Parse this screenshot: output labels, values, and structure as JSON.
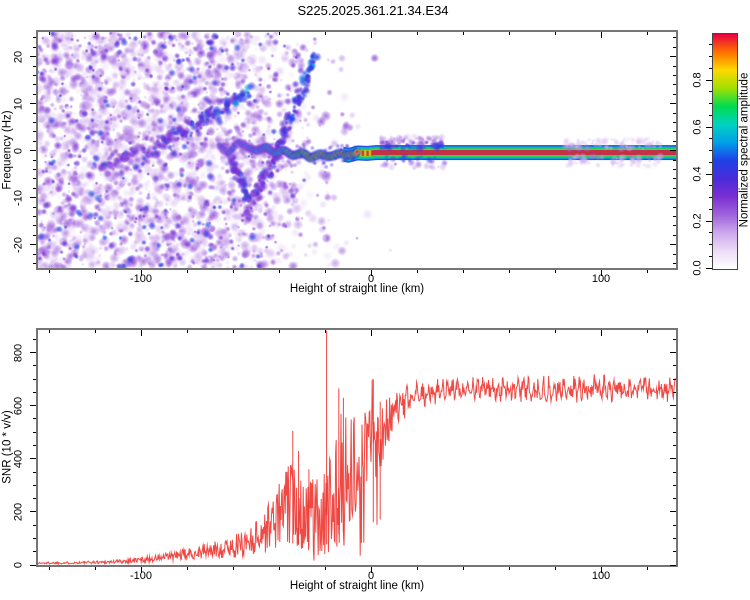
{
  "chart_data": [
    {
      "type": "heatmap",
      "title": "S225.2025.361.21.34.E34",
      "xlabel": "Height of straight line (km)",
      "ylabel": "Frequency (Hz)",
      "xlim": [
        -144.8,
        132.6
      ],
      "ylim": [
        -25.2,
        25.2
      ],
      "xticks": {
        "major": [
          -100,
          0,
          100
        ],
        "minor_step": 20
      },
      "yticks": {
        "major": [
          -20,
          -10,
          0,
          10,
          20
        ],
        "minor_step": 2
      },
      "grid": false,
      "colorbar": {
        "label": "Normalized spectral amplitude",
        "range": [
          0,
          1
        ],
        "ticks": [
          0.0,
          0.2,
          0.4,
          0.6,
          0.8
        ],
        "minor_step": 0.05,
        "colors_low_to_high": [
          "#ffffff",
          "#ecdcf8",
          "#cda8ec",
          "#9f63dc",
          "#7a2fd2",
          "#4b2bda",
          "#2040e8",
          "#00a0e8",
          "#00d2c0",
          "#00dc50",
          "#a0e000",
          "#ffd800",
          "#ff7000",
          "#e80040"
        ]
      },
      "noise_field": {
        "freq_range": [
          -25,
          25
        ],
        "km_density": [
          [
            -145,
            0.95
          ],
          [
            -95,
            0.95
          ],
          [
            -60,
            0.8
          ],
          [
            -40,
            0.45
          ],
          [
            -25,
            0.16
          ],
          [
            -8,
            0.02
          ],
          [
            17,
            0.008
          ]
        ]
      },
      "tracks": {
        "chains": [
          {
            "name": "rising-chain",
            "points": [
              [
                -118,
                -4
              ],
              [
                -103,
                -1
              ],
              [
                -90,
                2
              ],
              [
                -77,
                5
              ],
              [
                -66,
                8.5
              ],
              [
                -57,
                11.5
              ],
              [
                -52,
                13
              ]
            ],
            "amp": [
              0.26,
              0.5
            ],
            "jitter": [
              2.4,
              1.6
            ],
            "core_p": 0.14
          },
          {
            "name": "descending-chain",
            "points": [
              [
                -64,
                1
              ],
              [
                -58,
                -5
              ],
              [
                -53,
                -11
              ]
            ],
            "amp": [
              0.3,
              0.45
            ],
            "jitter": [
              1.4,
              1.2
            ],
            "core_p": 0.08
          },
          {
            "name": "steep-diagonal",
            "points": [
              [
                -55,
                -14
              ],
              [
                -45,
                -5
              ],
              [
                -37,
                5
              ],
              [
                -29,
                14
              ],
              [
                -24,
                21
              ]
            ],
            "amp": [
              0.3,
              0.5
            ],
            "jitter": [
              1.3,
              1.2
            ],
            "core_p": 0.1
          }
        ],
        "carrier": {
          "points": [
            [
              -66,
              1.2,
              0.45
            ],
            [
              -62,
              -0.5,
              0.5
            ],
            [
              -58,
              1.8,
              0.52
            ],
            [
              -54,
              0.8,
              0.56
            ],
            [
              -50,
              -0.2,
              0.6
            ],
            [
              -46,
              1.0,
              0.64
            ],
            [
              -42,
              -0.6,
              0.68
            ],
            [
              -38,
              0.2,
              0.74
            ],
            [
              -34,
              -1.2,
              0.82
            ],
            [
              -30,
              -0.4,
              0.88
            ],
            [
              -26,
              -1.6,
              0.93
            ],
            [
              -22,
              -0.6,
              1.0
            ],
            [
              -18,
              -1.4,
              0.9
            ],
            [
              -14,
              -0.6,
              1.0
            ],
            [
              -10,
              -1.0,
              0.95
            ],
            [
              -6,
              -0.5,
              1.0
            ],
            [
              -2,
              -0.6,
              1.0
            ],
            [
              2,
              -0.42,
              1.0
            ]
          ],
          "flat_hz": -0.42,
          "stripe_start_km": -12,
          "bands": [
            [
              7.5,
              0.47
            ],
            [
              6.0,
              0.6
            ],
            [
              4.5,
              0.71
            ],
            [
              3.3,
              0.8
            ],
            [
              2.7,
              1.0
            ]
          ]
        },
        "fuzz": [
          {
            "km": [
              4,
              32
            ],
            "hz": [
              0.8,
              3.4
            ],
            "count": 130,
            "amp": [
              0.14,
              0.5
            ],
            "above_frac": 0.78
          },
          {
            "km": [
              84,
              126
            ],
            "hz": [
              0.7,
              2.9
            ],
            "count": 150,
            "amp": [
              0.08,
              0.2
            ],
            "above_frac": 0.5
          }
        ]
      }
    },
    {
      "type": "line",
      "xlabel": "Height of straight line (km)",
      "ylabel": "SNR (10 * v/v)",
      "xlim": [
        -144.8,
        132.6
      ],
      "ylim": [
        0,
        887
      ],
      "xticks": {
        "major": [
          -100,
          0,
          100
        ],
        "minor_step": 20
      },
      "yticks": {
        "major": [
          0,
          200,
          400,
          600,
          800
        ],
        "minor_step": 50
      },
      "grid": false,
      "color": "#ee3a34",
      "envelope": [
        [
          -145,
          7,
          4
        ],
        [
          -125,
          9,
          5
        ],
        [
          -112,
          12,
          7
        ],
        [
          -102,
          18,
          10
        ],
        [
          -92,
          26,
          14
        ],
        [
          -82,
          38,
          20
        ],
        [
          -72,
          52,
          28
        ],
        [
          -62,
          62,
          38
        ],
        [
          -56,
          80,
          50
        ],
        [
          -50,
          105,
          65
        ],
        [
          -46,
          130,
          85
        ],
        [
          -42,
          170,
          110
        ],
        [
          -38,
          210,
          140
        ],
        [
          -35,
          235,
          155
        ],
        [
          -32,
          225,
          160
        ],
        [
          -29,
          200,
          150
        ],
        [
          -26,
          185,
          150
        ],
        [
          -23,
          170,
          150
        ],
        [
          -20,
          210,
          190
        ],
        [
          -17,
          260,
          230
        ],
        [
          -14,
          330,
          260
        ],
        [
          -11,
          380,
          240
        ],
        [
          -8,
          370,
          200
        ],
        [
          -5,
          400,
          180
        ],
        [
          -2,
          430,
          170
        ],
        [
          1,
          460,
          150
        ],
        [
          4,
          490,
          130
        ],
        [
          7,
          530,
          105
        ],
        [
          10,
          565,
          80
        ],
        [
          13,
          595,
          60
        ],
        [
          16,
          618,
          45
        ],
        [
          20,
          640,
          38
        ],
        [
          26,
          652,
          36
        ],
        [
          40,
          660,
          34
        ],
        [
          60,
          663,
          35
        ],
        [
          80,
          660,
          36
        ],
        [
          100,
          666,
          38
        ],
        [
          120,
          662,
          36
        ],
        [
          133,
          660,
          36
        ]
      ],
      "spikes": [
        [
          -34,
          505
        ],
        [
          -31.5,
          430
        ],
        [
          -27,
          360
        ],
        [
          -19.3,
          882
        ],
        [
          -14,
          665
        ],
        [
          -12,
          630
        ],
        [
          1,
          700
        ],
        [
          4,
          615
        ]
      ],
      "plateau_ripple": {
        "amplitude": 20,
        "period_km": 2.2
      }
    }
  ]
}
